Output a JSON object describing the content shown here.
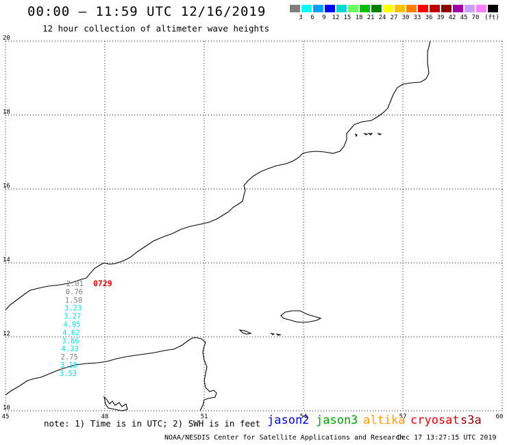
{
  "header": {
    "title": "00:00 — 11:59 UTC 12/16/2019",
    "subtitle": "12 hour collection of altimeter wave heights"
  },
  "legend": {
    "colors": [
      "#7f7f7f",
      "#00ffff",
      "#00a0ff",
      "#0000ff",
      "#00d8d8",
      "#66ff66",
      "#00c000",
      "#008000",
      "#ffff00",
      "#ffc000",
      "#ff8000",
      "#ff0000",
      "#c00000",
      "#8b0000",
      "#a000a0",
      "#c8a0ff",
      "#ff80ff",
      "#000000"
    ],
    "labels": [
      "3",
      "6",
      "9",
      "12",
      "15",
      "18",
      "21",
      "24",
      "27",
      "30",
      "33",
      "36",
      "39",
      "42",
      "45",
      "70"
    ],
    "unit": "(ft)"
  },
  "map": {
    "lon_ticks": [
      "45",
      "48",
      "51",
      "54",
      "57",
      "60"
    ],
    "lat_ticks": [
      "20",
      "18",
      "16",
      "14",
      "12",
      "10"
    ],
    "lon_range": [
      45,
      60
    ],
    "lat_range": [
      10,
      20
    ],
    "grid": true
  },
  "track": {
    "time_label": "0729",
    "time_color": "#e00000",
    "wave_heights": [
      {
        "value": "2.01",
        "color": "#7f7f7f"
      },
      {
        "value": "0.76",
        "color": "#7f7f7f"
      },
      {
        "value": "1.58",
        "color": "#7f7f7f"
      },
      {
        "value": "3.23",
        "color": "#00e0e0"
      },
      {
        "value": "3.27",
        "color": "#00e0e0"
      },
      {
        "value": "4.95",
        "color": "#00e0e0"
      },
      {
        "value": "4.62",
        "color": "#00e0e0"
      },
      {
        "value": "3.86",
        "color": "#00e0e0"
      },
      {
        "value": "4.33",
        "color": "#00e0e0"
      },
      {
        "value": "2.75",
        "color": "#7f7f7f"
      },
      {
        "value": "3.18",
        "color": "#00e0e0"
      },
      {
        "value": "3.53",
        "color": "#00e0e0"
      }
    ]
  },
  "footer": {
    "note": "note: 1) Time is in UTC; 2) SWH is in feet",
    "satellites": [
      {
        "name": "jason2",
        "color": "#0000e0"
      },
      {
        "name": "jason3",
        "color": "#00a000"
      },
      {
        "name": "altika",
        "color": "#ff9900"
      },
      {
        "name": "cryosat",
        "color": "#e00000"
      },
      {
        "name": "s3a",
        "color": "#8b0000"
      }
    ],
    "credit": "NOAA/NESDIS Center for Satellite Applications and Research",
    "timestamp": "Dec 17 13:27:15 UTC 2019"
  }
}
